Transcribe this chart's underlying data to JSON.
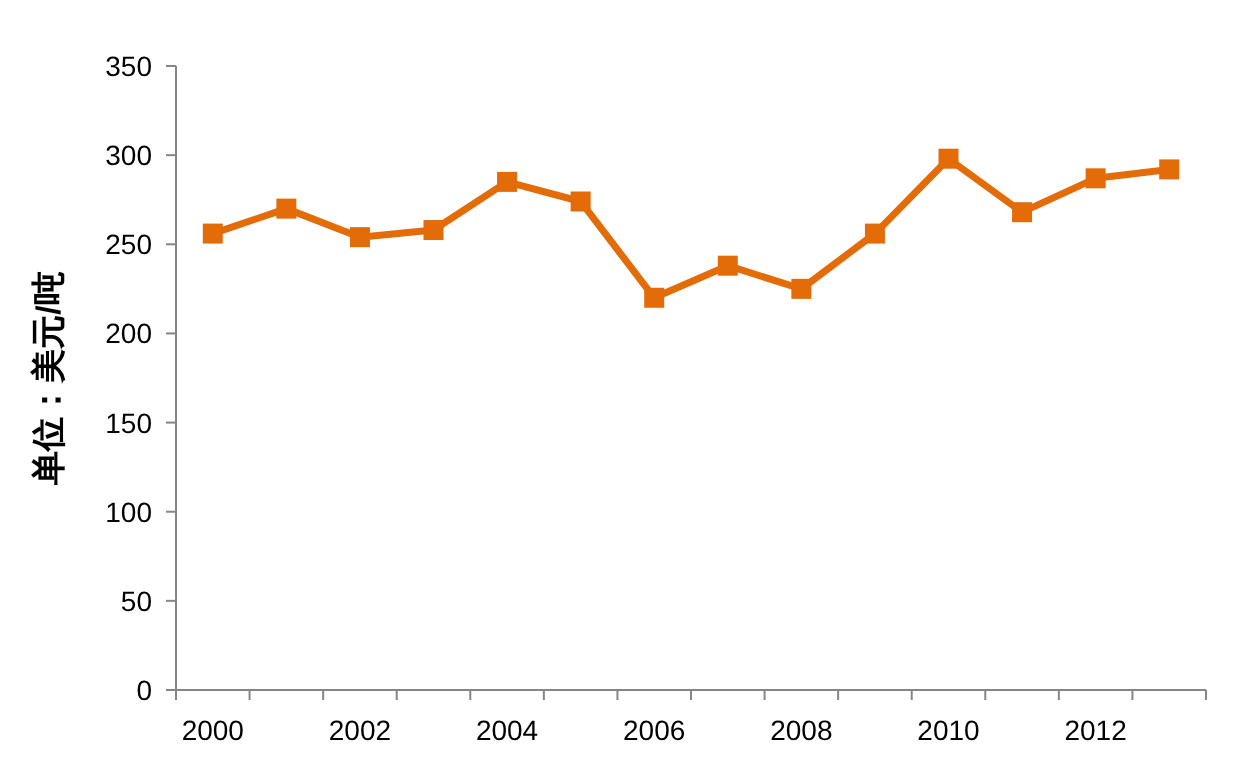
{
  "chart_data": {
    "type": "line",
    "ylabel": "单位：美元/吨",
    "categories": [
      "2000",
      null,
      "2002",
      null,
      "2004",
      null,
      "2006",
      null,
      "2008",
      null,
      "2010",
      null,
      "2012",
      null
    ],
    "values": [
      256,
      270,
      254,
      258,
      285,
      274,
      220,
      238,
      225,
      256,
      298,
      268,
      287,
      292
    ],
    "color": "#e36c09",
    "marker": "square",
    "ylim": [
      0,
      350
    ],
    "yticks": [
      0,
      50,
      100,
      150,
      200,
      250,
      300,
      350
    ]
  }
}
